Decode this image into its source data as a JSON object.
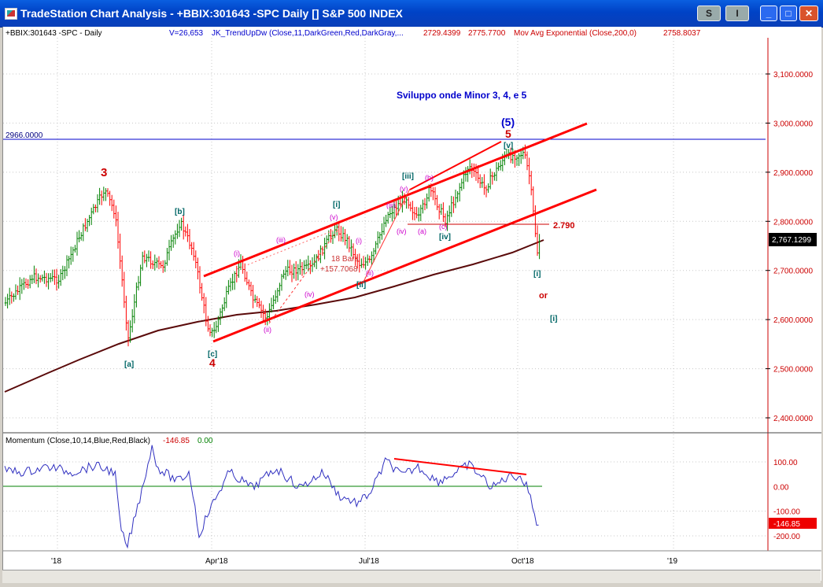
{
  "window": {
    "title": "TradeStation Chart Analysis - +BBIX:301643 -SPC Daily [] S&P 500 INDEX",
    "btn_s": "S",
    "btn_i": "I",
    "minimize_glyph": "_",
    "maximize_glyph": "□",
    "close_glyph": "✕"
  },
  "header": {
    "symbol": "+BBIX:301643 -SPC - Daily",
    "volume": "V=26,653",
    "indicator": "JK_TrendUpDw (Close,11,DarkGreen,Red,DarkGray,...",
    "ind_val1": "2729.4399",
    "ind_val2": "2775.7700",
    "mav": "Mov Avg Exponential (Close,200,0)",
    "mav_val": "2758.8037"
  },
  "annotations": {
    "title": "Sviluppo onde Minor 3, 4, e 5",
    "hline_label": "2966.0000",
    "level_label": "2.790",
    "measure1": "18 Bars",
    "measure2": "+157.7068",
    "or": "or",
    "lbl_3": "3",
    "lbl_4": "4",
    "lbl_5": "5",
    "lbl_5p": "(5)",
    "lbl_a_sq": "[a]",
    "lbl_b_sq": "[b]",
    "lbl_c_sq": "[c]",
    "lbl_i_sq": "[i]",
    "lbl_ii_sq": "[ii]",
    "lbl_iii_sq": "[iii]",
    "lbl_iv_sq": "[iv]",
    "lbl_v_sq": "[v]",
    "lbl_i_sq2": "[i]",
    "lbl_i_sq3": "[i]",
    "lbl_i": "(i)",
    "lbl_ii": "(ii)",
    "lbl_iii": "(iii)",
    "lbl_iv": "(iv)",
    "lbl_v": "(v)",
    "lbl_i2": "(i)",
    "lbl_ii2": "(ii)",
    "lbl_iii2": "(iii)",
    "lbl_iv2": "(iv)",
    "lbl_v2": "(v)",
    "lbl_a": "(a)",
    "lbl_b": "(b)",
    "lbl_c": "(c)"
  },
  "momentum": {
    "label": "Momentum (Close,10,14,Blue,Red,Black)",
    "val1": "-146.85",
    "val2": "0.00",
    "last_tag": "-146.85"
  },
  "chart_data": [
    {
      "type": "candlestick",
      "title": "+BBIX:301643 -SPC - Daily",
      "y_ticks": [
        "3,100.0000",
        "3,000.0000",
        "2,900.0000",
        "2,800.0000",
        "2,700.0000",
        "2,600.0000",
        "2,500.0000",
        "2,400.0000"
      ],
      "ylim": [
        2350,
        3160
      ],
      "last_price_tag": "2,767.1299",
      "x_ticks": [
        "'18",
        "Apr'18",
        "Jul'18",
        "Oct'18",
        "'19"
      ],
      "key_points": {
        "x": [
          "Jan 2018",
          "Jan 26 2018",
          "Feb 8 2018",
          "Mar 12 2018",
          "Apr 2 2018",
          "Jun 2018",
          "Jul 2018",
          "Aug 2018",
          "Sep 20 2018",
          "Oct 3 2018",
          "Oct 11 2018",
          "Oct 2018 last"
        ],
        "y": [
          2680,
          2873,
          2532,
          2801,
          2553,
          2790,
          2700,
          2860,
          2940,
          2940,
          2710,
          2767
        ]
      },
      "ema200": {
        "name": "Mov Avg Exponential (Close,200,0)",
        "x": [
          "Oct 2017",
          "Apr 2018",
          "Jul 2018",
          "Oct 2018"
        ],
        "y": [
          2450,
          2590,
          2690,
          2758
        ]
      }
    },
    {
      "type": "line",
      "title": "Momentum (Close,10,14,Blue,Red,Black)",
      "y_ticks": [
        "100.00",
        "0.00",
        "-100.00",
        "-200.00"
      ],
      "ylim": [
        -240,
        170
      ],
      "last_value": -146.85
    }
  ],
  "colors": {
    "titlebar": "#0042c6",
    "price_up": "#008000",
    "price_down": "#ff0000",
    "ema": "#5a0a0a",
    "trend": "#ff0000",
    "wave_blue": "#0000cc",
    "wave_magenta": "#cc00cc",
    "wave_teal": "#006666",
    "momentum": "#3030c0"
  }
}
